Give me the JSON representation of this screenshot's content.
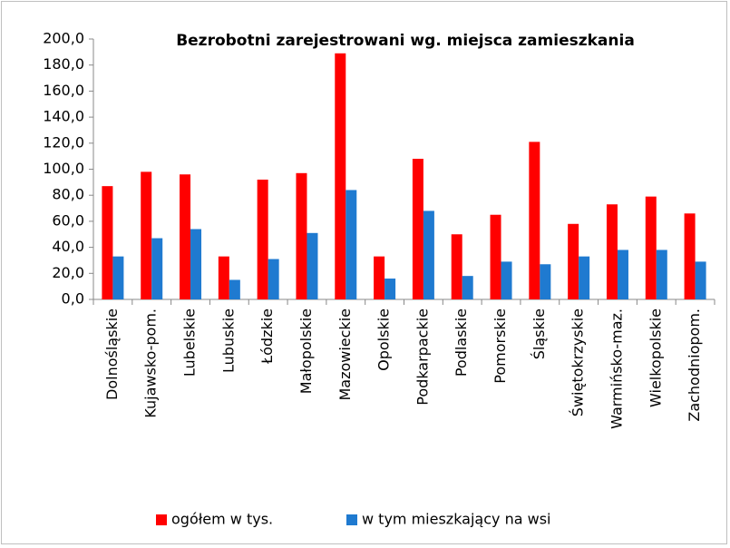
{
  "chart_data": {
    "type": "bar",
    "title": "Bezrobotni zarejestrowani wg. miejsca zamieszkania",
    "categories": [
      "Dolnośląskie",
      "Kujawsko-pom.",
      "Lubelskie",
      "Lubuskie",
      "Łódzkie",
      "Małopolskie",
      "Mazowieckie",
      "Opolskie",
      "Podkarpackie",
      "Podlaskie",
      "Pomorskie",
      "Śląskie",
      "Świętokrzyskie",
      "Warmińsko-maz.",
      "Wielkopolskie",
      "Zachodniopom."
    ],
    "series": [
      {
        "name": "ogółem w tys.",
        "color": "#ff0000",
        "values": [
          87,
          98,
          96,
          33,
          92,
          97,
          189,
          33,
          108,
          50,
          65,
          121,
          58,
          73,
          79,
          66
        ]
      },
      {
        "name": "w tym mieszkający na wsi",
        "color": "#1f7ad0",
        "values": [
          33,
          47,
          54,
          15,
          31,
          51,
          84,
          16,
          68,
          18,
          29,
          27,
          33,
          38,
          38,
          29
        ]
      }
    ],
    "ylim": [
      0,
      200
    ],
    "yticks": [
      {
        "value": 0,
        "label": "0,0"
      },
      {
        "value": 20,
        "label": "20,0"
      },
      {
        "value": 40,
        "label": "40,0"
      },
      {
        "value": 60,
        "label": "60,0"
      },
      {
        "value": 80,
        "label": "80,0"
      },
      {
        "value": 100,
        "label": "100,0"
      },
      {
        "value": 120,
        "label": "120,0"
      },
      {
        "value": 140,
        "label": "140,0"
      },
      {
        "value": 160,
        "label": "160,0"
      },
      {
        "value": 180,
        "label": "180,0"
      },
      {
        "value": 200,
        "label": "200,0"
      }
    ],
    "grid": false,
    "legend": "bottom"
  }
}
